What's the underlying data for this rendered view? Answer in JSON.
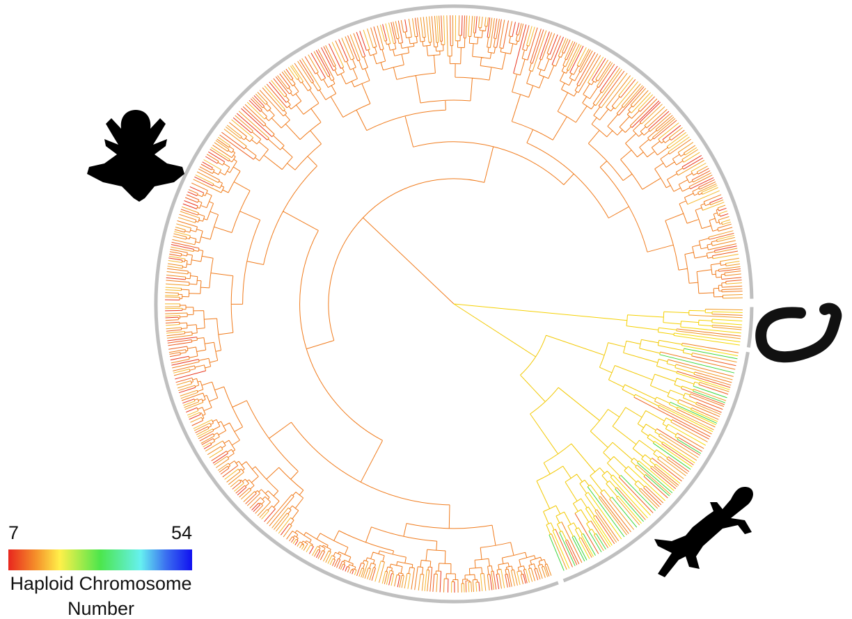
{
  "legend": {
    "min": 7,
    "max": 54,
    "title_line1": "Haploid Chromosome",
    "title_line2": "Number"
  }
}
